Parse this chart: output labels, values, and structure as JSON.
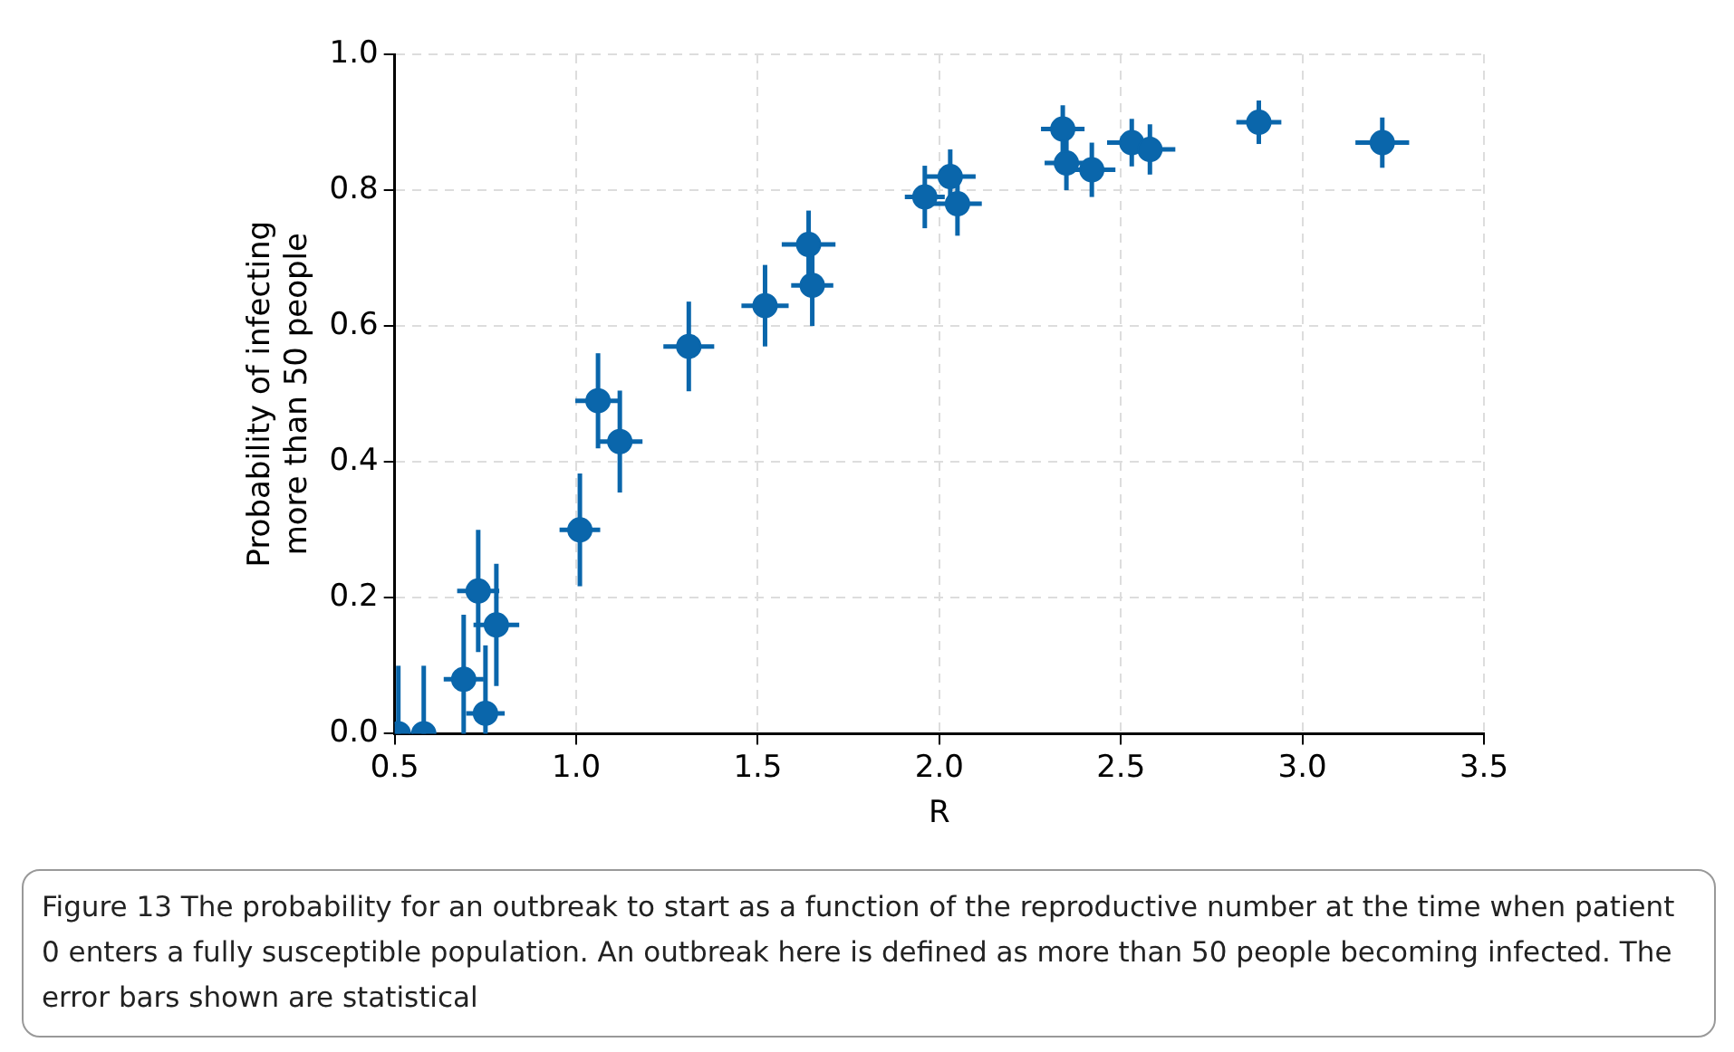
{
  "chart_data": {
    "type": "scatter",
    "xlabel": "R",
    "ylabel": "Probability of infecting\nmore than 50 people",
    "x": [
      0.51,
      0.58,
      0.69,
      0.73,
      0.75,
      0.78,
      1.01,
      1.06,
      1.12,
      1.31,
      1.52,
      1.64,
      1.65,
      1.96,
      2.03,
      2.05,
      2.34,
      2.35,
      2.42,
      2.53,
      2.58,
      2.88,
      3.22
    ],
    "series": [
      {
        "color": "#0a66ab",
        "values": [
          0.0,
          0.0,
          0.08,
          0.21,
          0.03,
          0.16,
          0.3,
          0.49,
          0.43,
          0.57,
          0.63,
          0.72,
          0.66,
          0.79,
          0.82,
          0.78,
          0.89,
          0.84,
          0.83,
          0.87,
          0.86,
          0.9,
          0.87
        ],
        "errors": [
          [
            0,
            0.1
          ],
          [
            0,
            0.1
          ],
          [
            0,
            0.175
          ],
          0.09,
          [
            0,
            0.13
          ],
          0.09,
          0.083,
          0.07,
          0.075,
          0.066,
          0.06,
          0.05,
          0.06,
          0.046,
          0.04,
          0.047,
          0.035,
          0.04,
          0.04,
          0.035,
          0.037,
          0.032,
          0.037
        ],
        "xerrors": [
          null,
          null,
          0.055,
          0.058,
          0.053,
          0.063,
          0.056,
          0.0625,
          0.0625,
          0.07,
          0.065,
          0.074,
          0.058,
          0.055,
          0.07,
          0.067,
          0.06,
          0.06,
          0.065,
          0.068,
          0.07,
          0.062,
          0.074
        ]
      }
    ],
    "xlim": [
      0.5,
      3.5
    ],
    "xticks": [
      {
        "value": 0.5,
        "label": "0.5"
      },
      {
        "value": 1,
        "label": "1.0"
      },
      {
        "value": 1.5,
        "label": "1.5"
      },
      {
        "value": 2,
        "label": "2.0"
      },
      {
        "value": 2.5,
        "label": "2.5"
      },
      {
        "value": 3,
        "label": "3.0"
      },
      {
        "value": 3.5,
        "label": "3.5"
      }
    ],
    "ylim": [
      0,
      1
    ],
    "yticks": [
      {
        "value": 0,
        "label": "0.0"
      },
      {
        "value": 0.2,
        "label": "0.2"
      },
      {
        "value": 0.4,
        "label": "0.4"
      },
      {
        "value": 0.6,
        "label": "0.6"
      },
      {
        "value": 0.8,
        "label": "0.8"
      },
      {
        "value": 1,
        "label": "1.0"
      }
    ],
    "grid": true,
    "marker": "circle",
    "annotations": [
      "Figure 13  The probability for an outbreak to start as a function of the reproductive number at the time when patient 0 enters a fully susceptible population. An outbreak here is defined as more than 50 people becoming infected. The error bars shown are statistical"
    ]
  }
}
